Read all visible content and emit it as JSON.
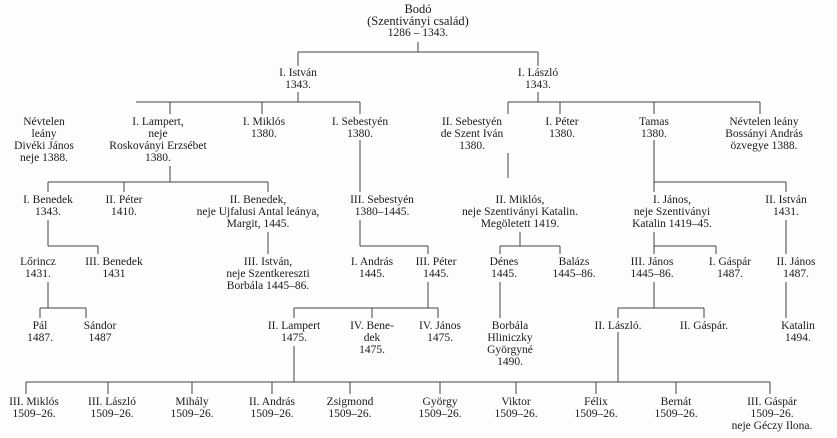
{
  "nodes": {
    "bodo": [
      "Bodó",
      "(Szentiványi család)",
      "1286 – 1343."
    ],
    "istvan_i": [
      "I. István",
      "1343."
    ],
    "laszlo_i": [
      "I. László",
      "1343."
    ],
    "nevtelen_1": [
      "Névtelen",
      "leány",
      "Divéki János",
      "neje 1388."
    ],
    "lampert_i": [
      "I. Lampert,",
      "neje",
      "Roskoványi Erzsébet",
      "1380."
    ],
    "miklos_i": [
      "I. Miklós",
      "1380."
    ],
    "sebestyen_i": [
      "I. Sebestyén",
      "1380."
    ],
    "sebestyen_ii": [
      "II. Sebestyén",
      "de Szent Iván",
      "1380."
    ],
    "peter_i": [
      "I. Péter",
      "1380."
    ],
    "tamas": [
      "Tamas",
      "1380."
    ],
    "nevtelen_2": [
      "Névtelen leány",
      "Bossányi András",
      "özvegye 1388."
    ],
    "benedek_i": [
      "I. Benedek",
      "1343."
    ],
    "peter_ii": [
      "II. Péter",
      "1410."
    ],
    "benedek_ii": [
      "II. Benedek,",
      "neje Ujfalusi Antal leánya,",
      "Margit, 1445."
    ],
    "sebestyen_iii": [
      "III. Sebestyén",
      "1380–1445."
    ],
    "miklos_ii": [
      "II. Miklós,",
      "neje Szentiványi Katalin.",
      "Megöletett 1419."
    ],
    "janos_i": [
      "I. János,",
      "neje Szentiványi",
      "Katalin 1419–45."
    ],
    "istvan_ii": [
      "II. István",
      "1431."
    ],
    "lorincz": [
      "Lőrincz",
      "1431."
    ],
    "benedek_iii": [
      "III. Benedek",
      "1431"
    ],
    "istvan_iii": [
      "III. István,",
      "neje Szentkereszti",
      "Borbála 1445–86."
    ],
    "andras_i": [
      "I. András",
      "1445."
    ],
    "peter_iii": [
      "III. Péter",
      "1445."
    ],
    "denes": [
      "Dénes",
      "1445."
    ],
    "balazs": [
      "Balázs",
      "1445–86."
    ],
    "janos_iii": [
      "III. János",
      "1445–86."
    ],
    "gaspar_i": [
      "I. Gáspár",
      "1487."
    ],
    "janos_ii": [
      "II. János",
      "1487."
    ],
    "pal": [
      "Pál",
      "1487."
    ],
    "sandor": [
      "Sándor",
      "1487"
    ],
    "lampert_ii": [
      "II. Lampert",
      "1475."
    ],
    "benedek_iv": [
      "IV. Bene-",
      "dek",
      "1475."
    ],
    "janos_iv": [
      "IV. János",
      "1475."
    ],
    "borbala": [
      "Borbála",
      "Hliniczky",
      "Györgyné",
      "1490."
    ],
    "laszlo_ii": [
      "II. László."
    ],
    "gaspar_ii": [
      "II. Gáspár."
    ],
    "katalin": [
      "Katalin",
      "1494."
    ],
    "miklos_iii": [
      "III. Miklós",
      "1509–26."
    ],
    "laszlo_iii": [
      "III. László",
      "1509–26."
    ],
    "mihaly": [
      "Mihály",
      "1509–26."
    ],
    "andras_ii": [
      "II. András",
      "1509–26."
    ],
    "zsigmond": [
      "Zsigmond",
      "1509–26."
    ],
    "gyorgy": [
      "György",
      "1509–26."
    ],
    "viktor": [
      "Viktor",
      "1509–26."
    ],
    "felix": [
      "Félix",
      "1509–26."
    ],
    "bernat": [
      "Bernát",
      "1509–26."
    ],
    "gaspar_iii": [
      "III. Gáspár",
      "1509–26.",
      "neje Géczy Ilona."
    ]
  }
}
